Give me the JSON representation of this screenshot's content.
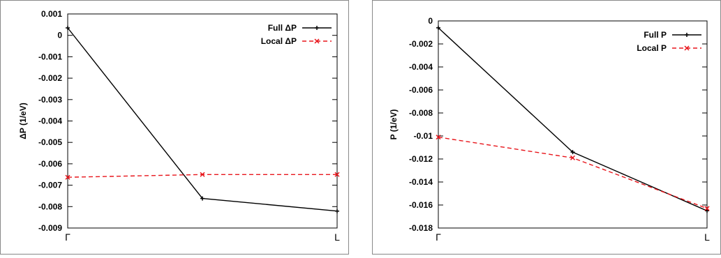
{
  "chart_data": [
    {
      "type": "line",
      "title": "",
      "xlabel": "",
      "ylabel": "ΔP (1/eV)",
      "x_ticks": [
        "Γ",
        "L"
      ],
      "x": [
        0,
        0.5,
        1
      ],
      "xlim": [
        0,
        1
      ],
      "ylim": [
        -0.009,
        0.001
      ],
      "y_ticks": [
        "0.001",
        "0",
        "-0.001",
        "-0.002",
        "-0.003",
        "-0.004",
        "-0.005",
        "-0.006",
        "-0.007",
        "-0.008",
        "-0.009"
      ],
      "y_tick_values": [
        0.001,
        0,
        -0.001,
        -0.002,
        -0.003,
        -0.004,
        -0.005,
        -0.006,
        -0.007,
        -0.008,
        -0.009
      ],
      "grid": false,
      "legend_position": "top-right",
      "series": [
        {
          "name": "Full ΔP",
          "values": [
            0.00035,
            -0.00762,
            -0.00821
          ],
          "color": "#000000",
          "dash": "solid",
          "marker": "plus"
        },
        {
          "name": "Local ΔP",
          "values": [
            -0.00663,
            -0.0065,
            -0.0065
          ],
          "color": "#e8151b",
          "dash": "dashed",
          "marker": "cross"
        }
      ]
    },
    {
      "type": "line",
      "title": "",
      "xlabel": "",
      "ylabel": "P (1/eV)",
      "x_ticks": [
        "Γ",
        "L"
      ],
      "x": [
        0,
        0.5,
        1
      ],
      "xlim": [
        0,
        1
      ],
      "ylim": [
        -0.018,
        0
      ],
      "y_ticks": [
        "0",
        "-0.002",
        "-0.004",
        "-0.006",
        "-0.008",
        "-0.01",
        "-0.012",
        "-0.014",
        "-0.016",
        "-0.018"
      ],
      "y_tick_values": [
        0,
        -0.002,
        -0.004,
        -0.006,
        -0.008,
        -0.01,
        -0.012,
        -0.014,
        -0.016,
        -0.018
      ],
      "grid": false,
      "legend_position": "top-right",
      "series": [
        {
          "name": "Full P",
          "values": [
            -0.0006,
            -0.0114,
            -0.0165
          ],
          "color": "#000000",
          "dash": "solid",
          "marker": "plus"
        },
        {
          "name": "Local P",
          "values": [
            -0.0101,
            -0.0119,
            -0.0163
          ],
          "color": "#e8151b",
          "dash": "dashed",
          "marker": "cross"
        }
      ]
    }
  ]
}
